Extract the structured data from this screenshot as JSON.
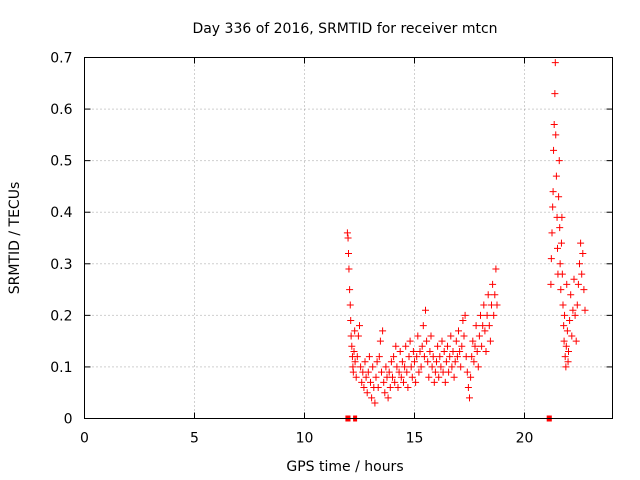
{
  "chart_data": {
    "type": "scatter",
    "title": "Day 336 of 2016, SRMTID for receiver mtcn",
    "xlabel": "GPS time / hours",
    "ylabel": "SRMTID / TECUs",
    "xlim": [
      0,
      24
    ],
    "ylim": [
      0,
      0.7
    ],
    "x_ticks": [
      "0",
      "5",
      "10",
      "15",
      "20"
    ],
    "y_ticks": [
      "0",
      "0.1",
      "0.2",
      "0.3",
      "0.4",
      "0.5",
      "0.6",
      "0.7"
    ],
    "grid": true,
    "marker": "+",
    "color": "#ff0000",
    "series": [
      {
        "name": "SRMTID",
        "points": [
          [
            11.95,
            0.36
          ],
          [
            11.98,
            0.35
          ],
          [
            12.0,
            0.32
          ],
          [
            12.02,
            0.29
          ],
          [
            12.05,
            0.25
          ],
          [
            12.08,
            0.22
          ],
          [
            12.1,
            0.19
          ],
          [
            12.12,
            0.16
          ],
          [
            12.15,
            0.14
          ],
          [
            12.18,
            0.12
          ],
          [
            12.2,
            0.1
          ],
          [
            12.22,
            0.09
          ],
          [
            12.25,
            0.13
          ],
          [
            12.28,
            0.17
          ],
          [
            12.3,
            0.11
          ],
          [
            12.35,
            0.08
          ],
          [
            12.4,
            0.12
          ],
          [
            12.45,
            0.16
          ],
          [
            12.5,
            0.18
          ],
          [
            12.55,
            0.1
          ],
          [
            12.6,
            0.07
          ],
          [
            12.65,
            0.09
          ],
          [
            12.7,
            0.06
          ],
          [
            12.75,
            0.11
          ],
          [
            12.8,
            0.08
          ],
          [
            12.85,
            0.05
          ],
          [
            12.9,
            0.09
          ],
          [
            12.95,
            0.12
          ],
          [
            13.0,
            0.07
          ],
          [
            13.05,
            0.04
          ],
          [
            13.1,
            0.1
          ],
          [
            13.15,
            0.06
          ],
          [
            13.2,
            0.03
          ],
          [
            13.25,
            0.08
          ],
          [
            13.3,
            0.11
          ],
          [
            13.35,
            0.06
          ],
          [
            13.4,
            0.12
          ],
          [
            13.45,
            0.15
          ],
          [
            13.5,
            0.09
          ],
          [
            13.55,
            0.17
          ],
          [
            13.6,
            0.07
          ],
          [
            13.65,
            0.05
          ],
          [
            13.7,
            0.1
          ],
          [
            13.75,
            0.08
          ],
          [
            13.8,
            0.04
          ],
          [
            13.85,
            0.09
          ],
          [
            13.9,
            0.06
          ],
          [
            13.95,
            0.11
          ],
          [
            14.0,
            0.08
          ],
          [
            14.05,
            0.12
          ],
          [
            14.1,
            0.07
          ],
          [
            14.15,
            0.14
          ],
          [
            14.2,
            0.1
          ],
          [
            14.25,
            0.06
          ],
          [
            14.3,
            0.09
          ],
          [
            14.35,
            0.13
          ],
          [
            14.4,
            0.08
          ],
          [
            14.45,
            0.11
          ],
          [
            14.5,
            0.07
          ],
          [
            14.55,
            0.1
          ],
          [
            14.6,
            0.14
          ],
          [
            14.65,
            0.09
          ],
          [
            14.7,
            0.06
          ],
          [
            14.75,
            0.12
          ],
          [
            14.8,
            0.15
          ],
          [
            14.85,
            0.1
          ],
          [
            14.9,
            0.08
          ],
          [
            14.95,
            0.13
          ],
          [
            15.0,
            0.11
          ],
          [
            15.05,
            0.07
          ],
          [
            15.1,
            0.12
          ],
          [
            15.15,
            0.16
          ],
          [
            15.2,
            0.09
          ],
          [
            15.25,
            0.13
          ],
          [
            15.3,
            0.1
          ],
          [
            15.35,
            0.14
          ],
          [
            15.4,
            0.18
          ],
          [
            15.45,
            0.12
          ],
          [
            15.5,
            0.21
          ],
          [
            15.55,
            0.15
          ],
          [
            15.6,
            0.11
          ],
          [
            15.65,
            0.08
          ],
          [
            15.7,
            0.13
          ],
          [
            15.75,
            0.16
          ],
          [
            15.8,
            0.1
          ],
          [
            15.85,
            0.12
          ],
          [
            15.9,
            0.07
          ],
          [
            15.95,
            0.09
          ],
          [
            16.0,
            0.11
          ],
          [
            16.05,
            0.14
          ],
          [
            16.1,
            0.08
          ],
          [
            16.15,
            0.12
          ],
          [
            16.2,
            0.1
          ],
          [
            16.25,
            0.15
          ],
          [
            16.3,
            0.09
          ],
          [
            16.35,
            0.13
          ],
          [
            16.4,
            0.07
          ],
          [
            16.45,
            0.11
          ],
          [
            16.5,
            0.14
          ],
          [
            16.55,
            0.09
          ],
          [
            16.6,
            0.12
          ],
          [
            16.65,
            0.16
          ],
          [
            16.7,
            0.1
          ],
          [
            16.75,
            0.13
          ],
          [
            16.8,
            0.08
          ],
          [
            16.85,
            0.11
          ],
          [
            16.9,
            0.15
          ],
          [
            16.95,
            0.12
          ],
          [
            17.0,
            0.17
          ],
          [
            17.05,
            0.13
          ],
          [
            17.1,
            0.1
          ],
          [
            17.15,
            0.14
          ],
          [
            17.2,
            0.19
          ],
          [
            17.25,
            0.16
          ],
          [
            17.3,
            0.2
          ],
          [
            17.35,
            0.12
          ],
          [
            17.4,
            0.09
          ],
          [
            17.45,
            0.06
          ],
          [
            17.5,
            0.04
          ],
          [
            17.55,
            0.08
          ],
          [
            17.6,
            0.12
          ],
          [
            17.65,
            0.15
          ],
          [
            17.7,
            0.11
          ],
          [
            17.75,
            0.14
          ],
          [
            17.8,
            0.18
          ],
          [
            17.85,
            0.13
          ],
          [
            17.9,
            0.1
          ],
          [
            17.95,
            0.16
          ],
          [
            18.0,
            0.2
          ],
          [
            18.05,
            0.14
          ],
          [
            18.1,
            0.18
          ],
          [
            18.15,
            0.22
          ],
          [
            18.2,
            0.17
          ],
          [
            18.25,
            0.13
          ],
          [
            18.3,
            0.2
          ],
          [
            18.35,
            0.24
          ],
          [
            18.4,
            0.18
          ],
          [
            18.45,
            0.15
          ],
          [
            18.5,
            0.22
          ],
          [
            18.55,
            0.26
          ],
          [
            18.6,
            0.2
          ],
          [
            18.65,
            0.24
          ],
          [
            18.7,
            0.29
          ],
          [
            18.75,
            0.22
          ],
          [
            21.2,
            0.26
          ],
          [
            21.22,
            0.31
          ],
          [
            21.25,
            0.36
          ],
          [
            21.28,
            0.41
          ],
          [
            21.3,
            0.44
          ],
          [
            21.32,
            0.52
          ],
          [
            21.35,
            0.57
          ],
          [
            21.38,
            0.63
          ],
          [
            21.4,
            0.69
          ],
          [
            21.42,
            0.55
          ],
          [
            21.45,
            0.47
          ],
          [
            21.48,
            0.39
          ],
          [
            21.5,
            0.33
          ],
          [
            21.52,
            0.28
          ],
          [
            21.55,
            0.43
          ],
          [
            21.58,
            0.5
          ],
          [
            21.6,
            0.37
          ],
          [
            21.62,
            0.3
          ],
          [
            21.65,
            0.25
          ],
          [
            21.68,
            0.34
          ],
          [
            21.7,
            0.39
          ],
          [
            21.72,
            0.28
          ],
          [
            21.75,
            0.22
          ],
          [
            21.78,
            0.18
          ],
          [
            21.8,
            0.15
          ],
          [
            21.82,
            0.2
          ],
          [
            21.85,
            0.12
          ],
          [
            21.88,
            0.1
          ],
          [
            21.9,
            0.14
          ],
          [
            21.92,
            0.26
          ],
          [
            21.95,
            0.17
          ],
          [
            21.98,
            0.11
          ],
          [
            22.0,
            0.13
          ],
          [
            22.05,
            0.19
          ],
          [
            22.1,
            0.24
          ],
          [
            22.15,
            0.16
          ],
          [
            22.2,
            0.21
          ],
          [
            22.25,
            0.27
          ],
          [
            22.3,
            0.2
          ],
          [
            22.35,
            0.15
          ],
          [
            22.4,
            0.22
          ],
          [
            22.45,
            0.26
          ],
          [
            22.5,
            0.3
          ],
          [
            22.55,
            0.34
          ],
          [
            22.6,
            0.28
          ],
          [
            22.65,
            0.32
          ],
          [
            22.7,
            0.25
          ],
          [
            22.75,
            0.21
          ]
        ]
      },
      {
        "name": "data-gap markers",
        "points": [
          [
            11.95,
            0
          ],
          [
            12.0,
            0
          ],
          [
            12.3,
            0
          ],
          [
            21.1,
            0
          ],
          [
            21.15,
            0
          ]
        ]
      }
    ]
  }
}
